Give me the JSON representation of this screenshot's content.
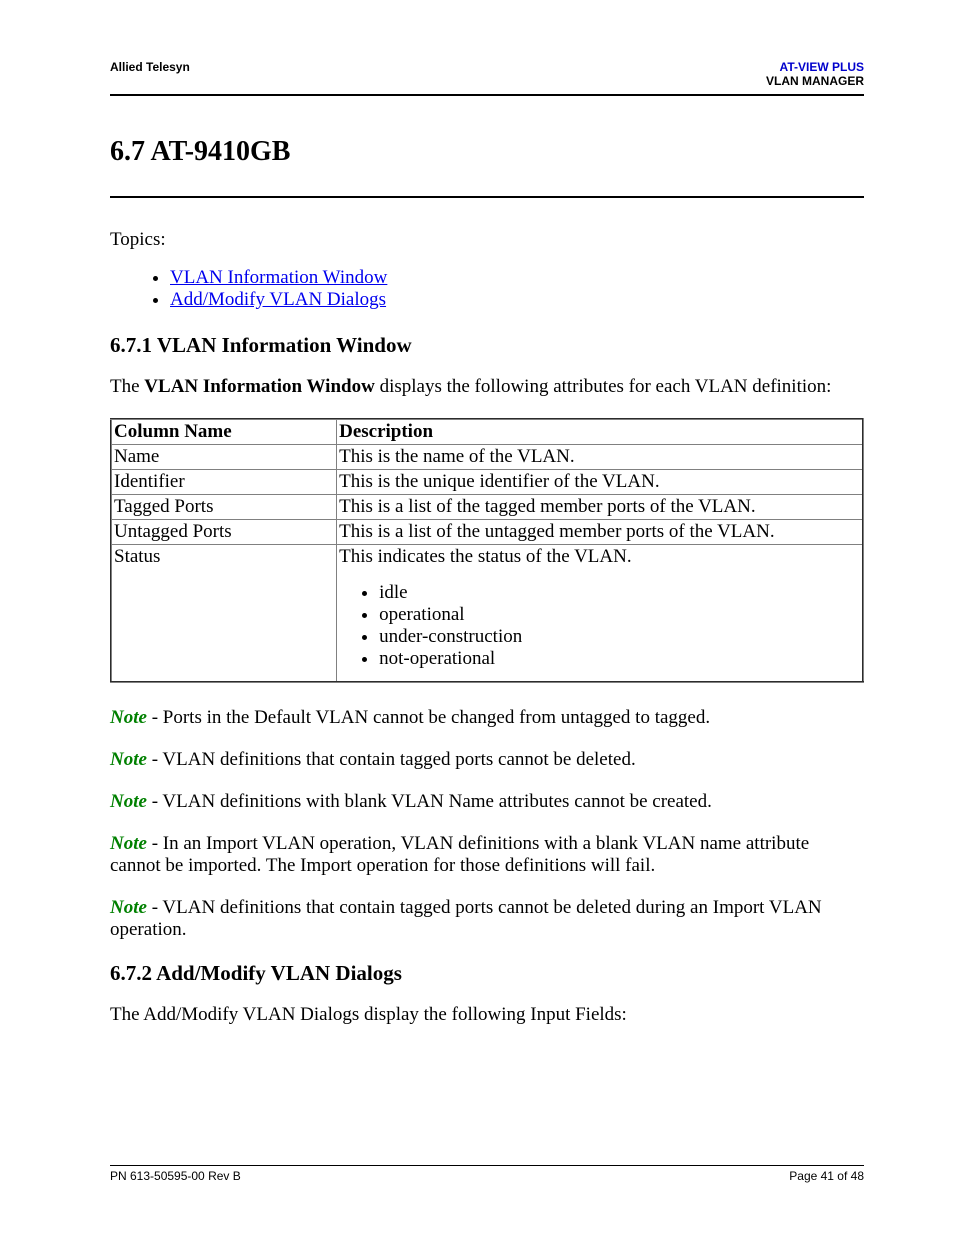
{
  "header": {
    "left": "Allied Telesyn",
    "right_line1": "AT-VIEW PLUS",
    "right_line2": "VLAN MANAGER"
  },
  "section": {
    "title": "6.7 AT-9410GB",
    "topics_label": "Topics:",
    "topics": [
      "VLAN Information Window",
      "Add/Modify VLAN Dialogs"
    ]
  },
  "sub1": {
    "heading": "6.7.1 VLAN Information Window",
    "intro_prefix": "The ",
    "intro_bold": "VLAN Information Window",
    "intro_suffix": " displays the following attributes for each VLAN definition:"
  },
  "table": {
    "columns": [
      "Column Name",
      "Description"
    ],
    "rows": [
      {
        "name": "Name",
        "desc": "This is the name of the VLAN."
      },
      {
        "name": "Identifier",
        "desc": "This is the unique identifier of the VLAN."
      },
      {
        "name": "Tagged Ports",
        "desc": "This is a list of the tagged member ports of the VLAN."
      },
      {
        "name": "Untagged Ports",
        "desc": "This is a list of the untagged member ports of the VLAN."
      }
    ],
    "status_row": {
      "name": "Status",
      "desc_intro": "This indicates the status of the VLAN.",
      "items": [
        "idle",
        "operational",
        "under-construction",
        "not-operational"
      ]
    }
  },
  "notes": {
    "label": "Note",
    "sep": " - ",
    "items": [
      "Ports in the Default VLAN cannot be changed from untagged to tagged.",
      "VLAN definitions that contain tagged ports cannot be deleted.",
      "VLAN definitions with blank VLAN Name attributes cannot be created.",
      "In an Import VLAN operation, VLAN definitions with a blank VLAN name attribute cannot be imported. The Import operation for those definitions will fail.",
      "VLAN definitions that contain tagged ports cannot be deleted during an Import VLAN operation."
    ]
  },
  "sub2": {
    "heading": "6.7.2 Add/Modify VLAN Dialogs",
    "intro": "The Add/Modify VLAN Dialogs display the following Input Fields:"
  },
  "footer": {
    "left": "PN 613-50595-00 Rev B",
    "right": "Page 41 of 48"
  }
}
